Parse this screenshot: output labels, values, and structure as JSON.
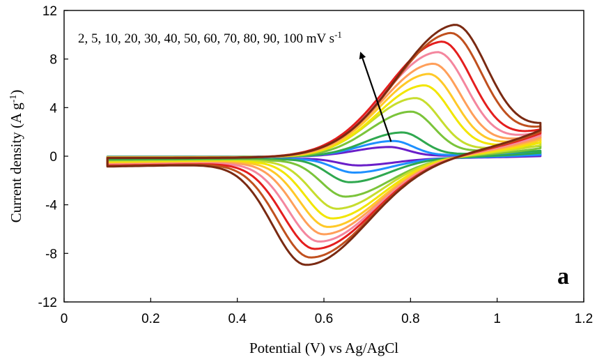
{
  "chart_data": {
    "type": "line",
    "title": "",
    "xlabel": "Potential  (V) vs Ag/AgCl",
    "ylabel_main": "Current  density  (A g",
    "ylabel_sup": "-1",
    "ylabel_end": ")",
    "xlim": [
      0,
      1.2
    ],
    "ylim": [
      -12,
      12
    ],
    "x_ticks": [
      "0",
      "0.2",
      "0.4",
      "0.6",
      "0.8",
      "1",
      "1.2"
    ],
    "y_ticks": [
      "-12",
      "-8",
      "-4",
      "0",
      "4",
      "8",
      "12"
    ],
    "x_tick_values": [
      0,
      0.2,
      0.4,
      0.6,
      0.8,
      1.0,
      1.2
    ],
    "y_tick_values": [
      -12,
      -8,
      -4,
      0,
      4,
      8,
      12
    ],
    "grid": false,
    "annotation_main": "2, 5, 10, 20, 30, 40, 50, 60, 70, 80, 90, 100 mV s",
    "annotation_sup": "-1",
    "panel_label": "a",
    "arrow": {
      "from": [
        0.755,
        1.2
      ],
      "to": [
        0.685,
        8.5
      ]
    },
    "potential_window": [
      0.1,
      1.1
    ],
    "series": [
      {
        "scan_rate_mV_s": 2,
        "color": "#6A1FC9",
        "anodic_peak": [
          0.75,
          0.8
        ],
        "cathodic_peak": [
          0.68,
          -0.6
        ]
      },
      {
        "scan_rate_mV_s": 5,
        "color": "#1E90FF",
        "anodic_peak": [
          0.76,
          1.3
        ],
        "cathodic_peak": [
          0.67,
          -1.2
        ]
      },
      {
        "scan_rate_mV_s": 10,
        "color": "#2FA84F",
        "anodic_peak": [
          0.78,
          2.0
        ],
        "cathodic_peak": [
          0.66,
          -2.0
        ]
      },
      {
        "scan_rate_mV_s": 20,
        "color": "#7BC43A",
        "anodic_peak": [
          0.8,
          3.7
        ],
        "cathodic_peak": [
          0.65,
          -3.2
        ]
      },
      {
        "scan_rate_mV_s": 30,
        "color": "#C7DD2E",
        "anodic_peak": [
          0.81,
          4.8
        ],
        "cathodic_peak": [
          0.63,
          -4.2
        ]
      },
      {
        "scan_rate_mV_s": 40,
        "color": "#F2E600",
        "anodic_peak": [
          0.83,
          5.8
        ],
        "cathodic_peak": [
          0.62,
          -5.0
        ]
      },
      {
        "scan_rate_mV_s": 50,
        "color": "#FFC928",
        "anodic_peak": [
          0.84,
          6.7
        ],
        "cathodic_peak": [
          0.61,
          -5.7
        ]
      },
      {
        "scan_rate_mV_s": 60,
        "color": "#FF9F5A",
        "anodic_peak": [
          0.85,
          7.5
        ],
        "cathodic_peak": [
          0.6,
          -6.3
        ]
      },
      {
        "scan_rate_mV_s": 70,
        "color": "#F4869E",
        "anodic_peak": [
          0.86,
          8.4
        ],
        "cathodic_peak": [
          0.59,
          -6.9
        ]
      },
      {
        "scan_rate_mV_s": 80,
        "color": "#E41E1E",
        "anodic_peak": [
          0.87,
          9.2
        ],
        "cathodic_peak": [
          0.58,
          -7.5
        ]
      },
      {
        "scan_rate_mV_s": 90,
        "color": "#C0501E",
        "anodic_peak": [
          0.89,
          9.8
        ],
        "cathodic_peak": [
          0.57,
          -8.2
        ]
      },
      {
        "scan_rate_mV_s": 100,
        "color": "#7A2A12",
        "anodic_peak": [
          0.9,
          10.4
        ],
        "cathodic_peak": [
          0.56,
          -8.8
        ]
      }
    ]
  }
}
